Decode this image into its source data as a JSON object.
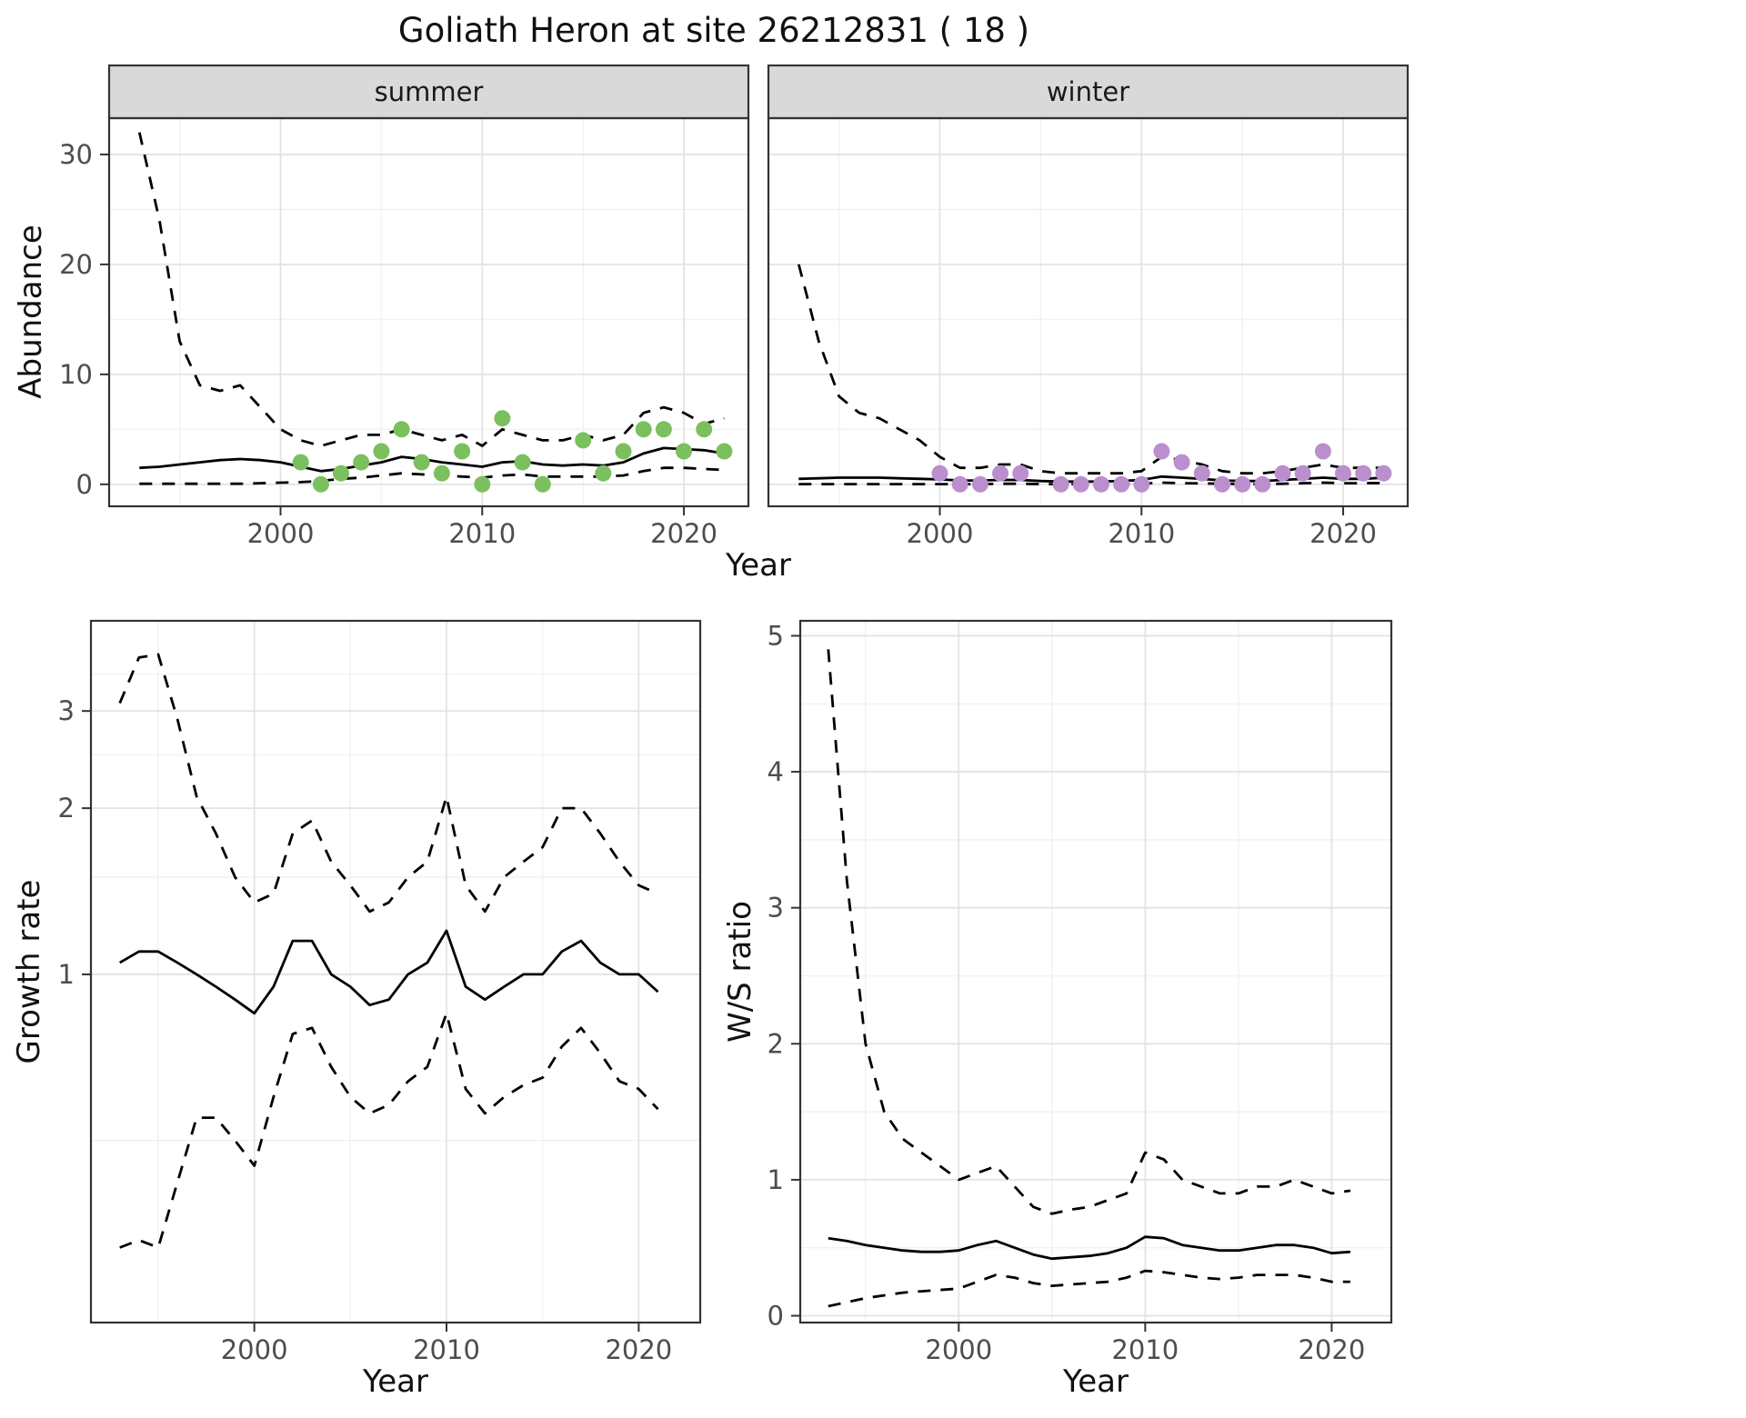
{
  "title": "Goliath Heron at site 26212831 ( 18 )",
  "colors": {
    "line": "#000000",
    "strip_bg": "#d9d9d9",
    "panel_border": "#333333",
    "grid_major": "#e3e3e3",
    "grid_minor": "#f1f1f1",
    "tick": "#333333",
    "tick_label": "#4d4d4d",
    "summer_point": "#7bc05e",
    "winter_point": "#bb8fce"
  },
  "chart_data": [
    {
      "type": "line+scatter",
      "xlabel": "Year",
      "ylabel": "Abundance",
      "y_scale": "linear",
      "xlim": [
        1991.5,
        2023.2
      ],
      "ylim": [
        -2.0,
        33.3
      ],
      "x_ticks": [
        2000,
        2010,
        2020
      ],
      "x_minor": [
        1995,
        2005,
        2015
      ],
      "y_ticks": [
        0,
        10,
        20,
        30
      ],
      "y_minor": [
        5,
        15,
        25
      ],
      "x": [
        1993,
        1994,
        1995,
        1996,
        1997,
        1998,
        1999,
        2000,
        2001,
        2002,
        2003,
        2004,
        2005,
        2006,
        2007,
        2008,
        2009,
        2010,
        2011,
        2012,
        2013,
        2014,
        2015,
        2016,
        2017,
        2018,
        2019,
        2020,
        2021,
        2022
      ],
      "facets": [
        {
          "label": "summer",
          "point_color": "#7bc05e",
          "fit": [
            1.5,
            1.6,
            1.8,
            2.0,
            2.2,
            2.3,
            2.2,
            2.0,
            1.6,
            1.2,
            1.4,
            1.7,
            2.0,
            2.5,
            2.3,
            2.0,
            1.8,
            1.6,
            2.0,
            2.1,
            1.8,
            1.7,
            1.8,
            1.7,
            2.0,
            2.8,
            3.3,
            3.2,
            3.1,
            2.8
          ],
          "upper": [
            32,
            24,
            13,
            9,
            8.5,
            9,
            7,
            5,
            4,
            3.5,
            4,
            4.5,
            4.5,
            5,
            4.5,
            4,
            4.5,
            3.5,
            5,
            4.5,
            4,
            4,
            4.5,
            4,
            4.5,
            6.5,
            7,
            6.5,
            5.5,
            6
          ],
          "lower": [
            0.05,
            0.05,
            0.05,
            0.05,
            0.05,
            0.05,
            0.1,
            0.15,
            0.2,
            0.3,
            0.5,
            0.6,
            0.8,
            1.0,
            0.9,
            0.8,
            0.7,
            0.6,
            0.8,
            0.9,
            0.7,
            0.7,
            0.7,
            0.7,
            0.8,
            1.2,
            1.5,
            1.5,
            1.4,
            1.3
          ],
          "points": {
            "x": [
              2001,
              2002,
              2003,
              2004,
              2005,
              2006,
              2007,
              2008,
              2009,
              2010,
              2011,
              2012,
              2013,
              2015,
              2016,
              2017,
              2018,
              2019,
              2020,
              2021,
              2022
            ],
            "y": [
              2,
              0,
              1,
              2,
              3,
              5,
              2,
              1,
              3,
              0,
              6,
              2,
              0,
              4,
              1,
              3,
              5,
              5,
              3,
              5,
              3
            ]
          }
        },
        {
          "label": "winter",
          "point_color": "#bb8fce",
          "fit": [
            0.5,
            0.55,
            0.6,
            0.6,
            0.6,
            0.55,
            0.5,
            0.45,
            0.35,
            0.35,
            0.4,
            0.4,
            0.3,
            0.25,
            0.25,
            0.25,
            0.3,
            0.4,
            0.7,
            0.6,
            0.5,
            0.35,
            0.3,
            0.3,
            0.4,
            0.5,
            0.6,
            0.5,
            0.5,
            0.6
          ],
          "upper": [
            20,
            13,
            8,
            6.5,
            6,
            5,
            4,
            2.5,
            1.5,
            1.5,
            1.8,
            1.8,
            1.2,
            1.0,
            1.0,
            1.0,
            1.0,
            1.2,
            2.5,
            2.2,
            1.8,
            1.2,
            1.0,
            1.0,
            1.2,
            1.5,
            1.8,
            1.5,
            1.5,
            1.5
          ],
          "lower": [
            0.02,
            0.02,
            0.02,
            0.02,
            0.02,
            0.02,
            0.02,
            0.02,
            0.02,
            0.02,
            0.05,
            0.05,
            0.02,
            0.02,
            0.02,
            0.02,
            0.02,
            0.05,
            0.15,
            0.1,
            0.08,
            0.05,
            0.02,
            0.02,
            0.05,
            0.1,
            0.15,
            0.1,
            0.1,
            0.12
          ],
          "points": {
            "x": [
              2000,
              2001,
              2002,
              2003,
              2004,
              2006,
              2007,
              2008,
              2009,
              2010,
              2011,
              2012,
              2013,
              2014,
              2015,
              2016,
              2017,
              2018,
              2019,
              2020,
              2021,
              2022
            ],
            "y": [
              1,
              0,
              0,
              1,
              1,
              0,
              0,
              0,
              0,
              0,
              3,
              2,
              1,
              0,
              0,
              0,
              1,
              1,
              3,
              1,
              1,
              1
            ]
          }
        }
      ]
    },
    {
      "type": "line",
      "xlabel": "Year",
      "ylabel": "Growth rate",
      "y_scale": "log10",
      "xlim": [
        1991.5,
        2023.2
      ],
      "ylim": [
        0.234,
        4.37
      ],
      "x_ticks": [
        2000,
        2010,
        2020
      ],
      "x_minor": [
        1995,
        2005,
        2015
      ],
      "y_ticks": [
        1,
        2,
        3
      ],
      "y_minor": [
        0.5,
        1.5,
        2.5,
        3.5
      ],
      "x": [
        1993,
        1994,
        1995,
        1996,
        1997,
        1998,
        1999,
        2000,
        2001,
        2002,
        2003,
        2004,
        2005,
        2006,
        2007,
        2008,
        2009,
        2010,
        2011,
        2012,
        2013,
        2014,
        2015,
        2016,
        2017,
        2018,
        2019,
        2020,
        2021
      ],
      "fit": [
        1.05,
        1.1,
        1.1,
        1.05,
        1.0,
        0.95,
        0.9,
        0.85,
        0.95,
        1.15,
        1.15,
        1.0,
        0.95,
        0.88,
        0.9,
        1.0,
        1.05,
        1.2,
        0.95,
        0.9,
        0.95,
        1.0,
        1.0,
        1.1,
        1.15,
        1.05,
        1.0,
        1.0,
        0.93
      ],
      "upper": [
        3.1,
        3.75,
        3.8,
        2.9,
        2.1,
        1.8,
        1.5,
        1.35,
        1.4,
        1.8,
        1.9,
        1.6,
        1.45,
        1.3,
        1.35,
        1.5,
        1.6,
        2.1,
        1.45,
        1.3,
        1.5,
        1.6,
        1.7,
        2.0,
        2.0,
        1.8,
        1.6,
        1.45,
        1.4
      ],
      "lower": [
        0.32,
        0.33,
        0.32,
        0.42,
        0.55,
        0.55,
        0.5,
        0.45,
        0.6,
        0.78,
        0.8,
        0.68,
        0.6,
        0.56,
        0.58,
        0.64,
        0.68,
        0.85,
        0.62,
        0.56,
        0.6,
        0.63,
        0.65,
        0.74,
        0.8,
        0.72,
        0.64,
        0.62,
        0.57
      ]
    },
    {
      "type": "line",
      "xlabel": "Year",
      "ylabel": "W/S ratio",
      "y_scale": "linear",
      "xlim": [
        1991.5,
        2023.2
      ],
      "ylim": [
        -0.05,
        5.11
      ],
      "x_ticks": [
        2000,
        2010,
        2020
      ],
      "x_minor": [
        1995,
        2005,
        2015
      ],
      "y_ticks": [
        0,
        1,
        2,
        3,
        4,
        5
      ],
      "y_minor": [
        0.5,
        1.5,
        2.5,
        3.5,
        4.5
      ],
      "x": [
        1993,
        1994,
        1995,
        1996,
        1997,
        1998,
        1999,
        2000,
        2001,
        2002,
        2003,
        2004,
        2005,
        2006,
        2007,
        2008,
        2009,
        2010,
        2011,
        2012,
        2013,
        2014,
        2015,
        2016,
        2017,
        2018,
        2019,
        2020,
        2021
      ],
      "fit": [
        0.57,
        0.55,
        0.52,
        0.5,
        0.48,
        0.47,
        0.47,
        0.48,
        0.52,
        0.55,
        0.5,
        0.45,
        0.42,
        0.43,
        0.44,
        0.46,
        0.5,
        0.58,
        0.57,
        0.52,
        0.5,
        0.48,
        0.48,
        0.5,
        0.52,
        0.52,
        0.5,
        0.46,
        0.47
      ],
      "upper": [
        4.9,
        3.2,
        2.0,
        1.5,
        1.3,
        1.2,
        1.1,
        1.0,
        1.05,
        1.1,
        0.95,
        0.8,
        0.75,
        0.78,
        0.8,
        0.85,
        0.9,
        1.2,
        1.15,
        1.0,
        0.95,
        0.9,
        0.9,
        0.95,
        0.95,
        1.0,
        0.95,
        0.9,
        0.92
      ],
      "lower": [
        0.07,
        0.1,
        0.13,
        0.15,
        0.17,
        0.18,
        0.19,
        0.2,
        0.25,
        0.3,
        0.28,
        0.24,
        0.22,
        0.23,
        0.24,
        0.25,
        0.28,
        0.33,
        0.32,
        0.3,
        0.28,
        0.27,
        0.28,
        0.3,
        0.3,
        0.3,
        0.28,
        0.25,
        0.25
      ]
    }
  ]
}
